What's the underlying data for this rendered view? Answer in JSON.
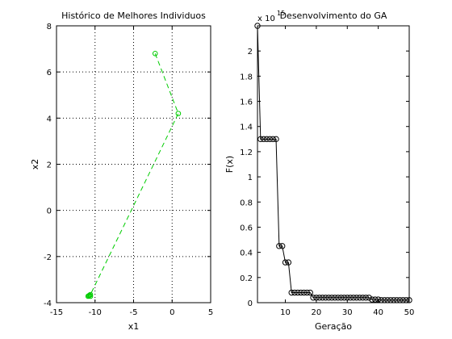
{
  "chart_data": [
    {
      "type": "line",
      "title": "Histórico de Melhores Individuos",
      "xlabel": "x1",
      "ylabel": "x2",
      "xlim": [
        -15,
        5
      ],
      "ylim": [
        -4,
        8
      ],
      "xticks": [
        -15,
        -10,
        -5,
        0,
        5
      ],
      "yticks": [
        -4,
        -2,
        0,
        2,
        4,
        6,
        8
      ],
      "grid": true,
      "series": [
        {
          "color": "#00cc00",
          "line_style": "dashed",
          "marker": "circle",
          "points": [
            {
              "x": -2.2,
              "y": 6.8
            },
            {
              "x": 0.8,
              "y": 4.2
            },
            {
              "x": -10.6,
              "y": -3.65
            },
            {
              "x": -10.8,
              "y": -3.7
            },
            {
              "x": -10.7,
              "y": -3.68
            },
            {
              "x": -10.9,
              "y": -3.72
            },
            {
              "x": -10.6,
              "y": -3.72
            }
          ]
        }
      ]
    },
    {
      "type": "line",
      "title": "Desenvolvimento do GA",
      "xlabel": "Geração",
      "ylabel": "F(x)",
      "yscale_label": "x 10",
      "yscale_exponent": "15",
      "xlim": [
        1,
        50
      ],
      "ylim": [
        0,
        2.2
      ],
      "xticks": [
        10,
        20,
        30,
        40,
        50
      ],
      "yticks": [
        0,
        0.2,
        0.4,
        0.6,
        0.8,
        1,
        1.2,
        1.4,
        1.6,
        1.8,
        2
      ],
      "ytick_labels": [
        "0",
        "0.2",
        "0.4",
        "0.6",
        "0.8",
        "1",
        "1.2",
        "1.4",
        "1.6",
        "1.8",
        "2"
      ],
      "grid": false,
      "series": [
        {
          "color": "#000000",
          "marker": "circle",
          "x": [
            1,
            2,
            3,
            4,
            5,
            6,
            7,
            8,
            9,
            10,
            11,
            12,
            13,
            14,
            15,
            16,
            17,
            18,
            19,
            20,
            21,
            22,
            23,
            24,
            25,
            26,
            27,
            28,
            29,
            30,
            31,
            32,
            33,
            34,
            35,
            36,
            37,
            38,
            39,
            40,
            41,
            42,
            43,
            44,
            45,
            46,
            47,
            48,
            49,
            50
          ],
          "values": [
            2.2,
            1.3,
            1.3,
            1.3,
            1.3,
            1.3,
            1.3,
            0.45,
            0.45,
            0.32,
            0.32,
            0.08,
            0.08,
            0.08,
            0.08,
            0.08,
            0.08,
            0.08,
            0.04,
            0.04,
            0.04,
            0.04,
            0.04,
            0.04,
            0.04,
            0.04,
            0.04,
            0.04,
            0.04,
            0.04,
            0.04,
            0.04,
            0.04,
            0.04,
            0.04,
            0.04,
            0.04,
            0.025,
            0.025,
            0.025,
            0.02,
            0.02,
            0.02,
            0.02,
            0.02,
            0.02,
            0.02,
            0.02,
            0.02,
            0.02
          ]
        }
      ]
    }
  ]
}
